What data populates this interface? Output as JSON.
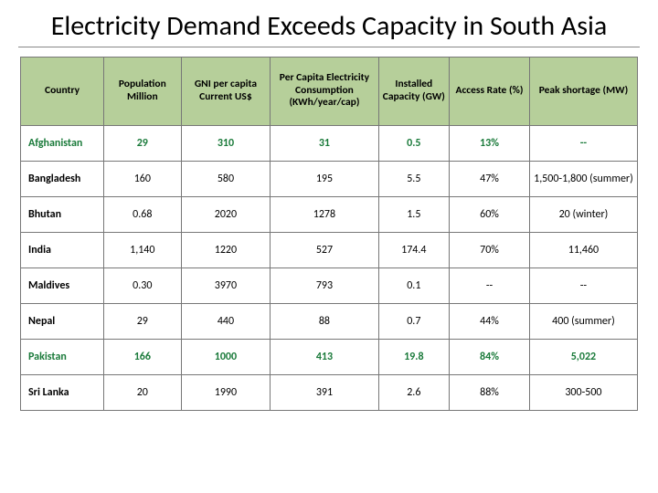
{
  "title": "Electricity Demand Exceeds Capacity in South Asia",
  "table": {
    "type": "table",
    "header_bg": "#b6cf9a",
    "border_color": "#777777",
    "highlight_color": "#1a7a3a",
    "col_widths_pct": [
      13.5,
      12.5,
      14.5,
      17.5,
      11.5,
      13,
      17.5
    ],
    "title_fontsize": 30,
    "header_fontsize": 11.5,
    "cell_fontsize": 12,
    "columns": [
      "Country",
      "Population Million",
      "GNI per capita Current US$",
      "Per Capita Electricity Consumption (KWh/year/cap)",
      "Installed Capacity (GW)",
      "Access Rate (%)",
      "Peak shortage (MW)"
    ],
    "rows": [
      {
        "hl": true,
        "cells": [
          "Afghanistan",
          "29",
          "310",
          "31",
          "0.5",
          "13%",
          "--"
        ]
      },
      {
        "hl": false,
        "cells": [
          "Bangladesh",
          "160",
          "580",
          "195",
          "5.5",
          "47%",
          "1,500-1,800 (summer)"
        ]
      },
      {
        "hl": false,
        "cells": [
          "Bhutan",
          "0.68",
          "2020",
          "1278",
          "1.5",
          "60%",
          "20 (winter)"
        ]
      },
      {
        "hl": false,
        "cells": [
          "India",
          "1,140",
          "1220",
          "527",
          "174.4",
          "70%",
          "11,460"
        ]
      },
      {
        "hl": false,
        "cells": [
          "Maldives",
          "0.30",
          "3970",
          "793",
          "0.1",
          "--",
          "--"
        ]
      },
      {
        "hl": false,
        "cells": [
          "Nepal",
          "29",
          "440",
          "88",
          "0.7",
          "44%",
          "400 (summer)"
        ]
      },
      {
        "hl": true,
        "cells": [
          "Pakistan",
          "166",
          "1000",
          "413",
          "19.8",
          "84%",
          "5,022"
        ]
      },
      {
        "hl": false,
        "cells": [
          "Sri Lanka",
          "20",
          "1990",
          "391",
          "2.6",
          "88%",
          "300-500"
        ]
      }
    ]
  }
}
